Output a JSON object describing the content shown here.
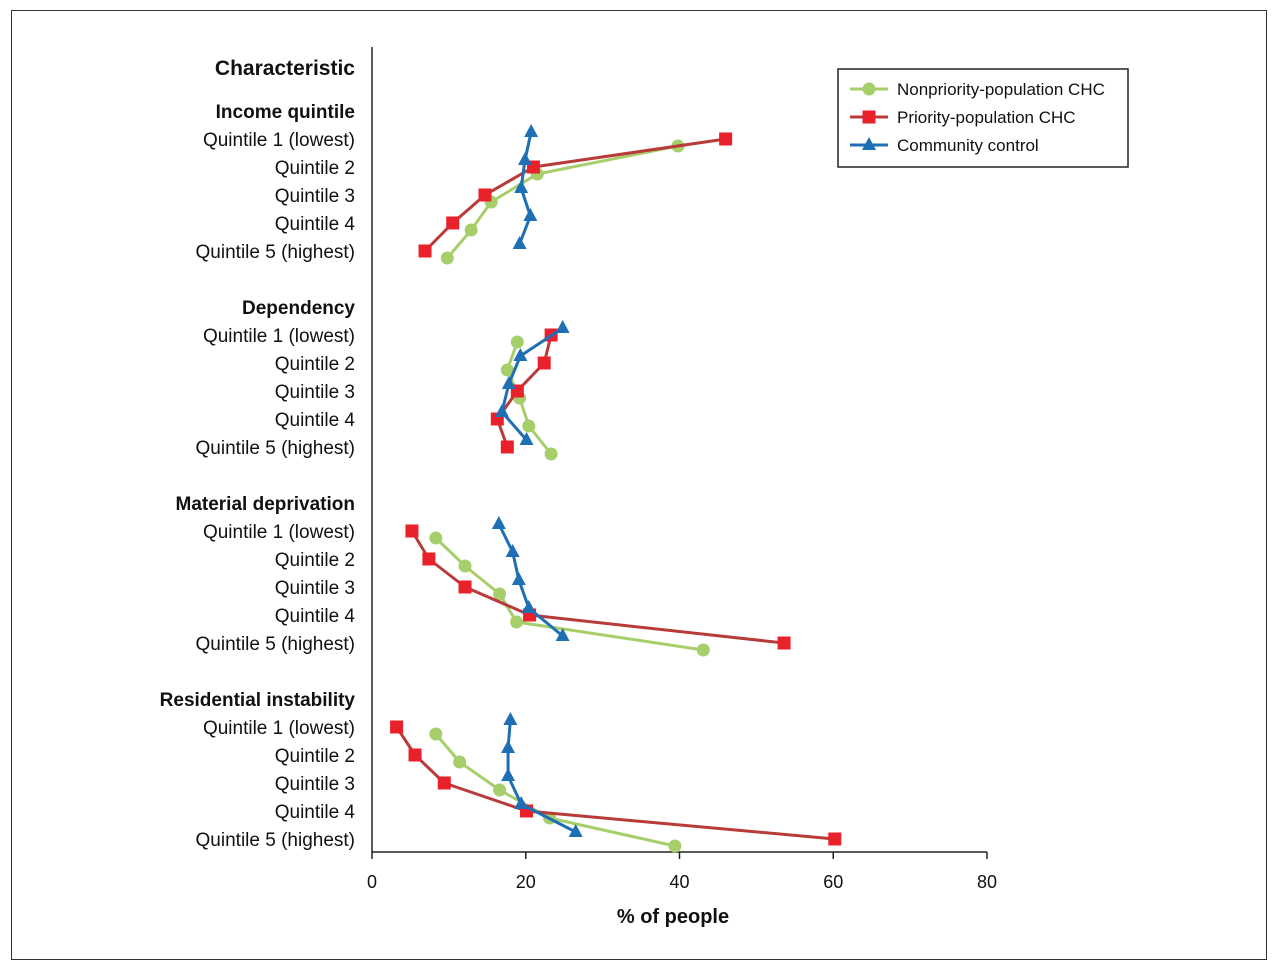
{
  "chart_data": {
    "type": "line",
    "row_header": "Characteristic",
    "xlabel": "% of people",
    "xlim": [
      0,
      80
    ],
    "xticks": [
      0,
      20,
      40,
      60,
      80
    ],
    "grid": false,
    "legend_position": "top-right",
    "series_meta": [
      {
        "name": "Nonpriority-population CHC",
        "color": "#a6cf6b",
        "marker": "circle"
      },
      {
        "name": "Priority-population CHC",
        "color": "#e8212a",
        "line_color": "#b83b39",
        "marker": "square"
      },
      {
        "name": "Community control",
        "color": "#1e6fb4",
        "marker": "triangle"
      }
    ],
    "groups": [
      {
        "title": "Income quintile",
        "categories": [
          "Quintile 1 (lowest)",
          "Quintile 2",
          "Quintile 3",
          "Quintile 4",
          "Quintile 5 (highest)"
        ],
        "series": [
          {
            "name": "Nonpriority-population CHC",
            "values": [
              39.8,
              21.5,
              15.5,
              12.9,
              9.8
            ]
          },
          {
            "name": "Priority-population CHC",
            "values": [
              46.0,
              21.0,
              14.7,
              10.5,
              6.9
            ]
          },
          {
            "name": "Community control",
            "values": [
              20.7,
              19.9,
              19.4,
              20.6,
              19.2
            ]
          }
        ]
      },
      {
        "title": "Dependency",
        "categories": [
          "Quintile 1 (lowest)",
          "Quintile 2",
          "Quintile 3",
          "Quintile 4",
          "Quintile 5 (highest)"
        ],
        "series": [
          {
            "name": "Nonpriority-population CHC",
            "values": [
              18.9,
              17.6,
              19.2,
              20.4,
              23.3
            ]
          },
          {
            "name": "Priority-population CHC",
            "values": [
              23.3,
              22.4,
              18.9,
              16.3,
              17.6
            ]
          },
          {
            "name": "Community control",
            "values": [
              24.8,
              19.3,
              17.8,
              16.9,
              20.1
            ]
          }
        ]
      },
      {
        "title": "Material deprivation",
        "categories": [
          "Quintile 1 (lowest)",
          "Quintile 2",
          "Quintile 3",
          "Quintile 4",
          "Quintile 5 (highest)"
        ],
        "series": [
          {
            "name": "Nonpriority-population CHC",
            "values": [
              8.3,
              12.1,
              16.6,
              18.8,
              43.1
            ]
          },
          {
            "name": "Priority-population CHC",
            "values": [
              5.2,
              7.4,
              12.1,
              20.5,
              53.6
            ]
          },
          {
            "name": "Community control",
            "values": [
              16.5,
              18.3,
              19.1,
              20.4,
              24.8
            ]
          }
        ]
      },
      {
        "title": "Residential instability",
        "categories": [
          "Quintile 1 (lowest)",
          "Quintile 2",
          "Quintile 3",
          "Quintile 4",
          "Quintile 5 (highest)"
        ],
        "series": [
          {
            "name": "Nonpriority-population CHC",
            "values": [
              8.3,
              11.4,
              16.6,
              23.1,
              39.4
            ]
          },
          {
            "name": "Priority-population CHC",
            "values": [
              3.2,
              5.6,
              9.4,
              20.1,
              60.2
            ]
          },
          {
            "name": "Community control",
            "values": [
              18.0,
              17.7,
              17.7,
              19.4,
              26.5
            ]
          }
        ]
      }
    ]
  }
}
